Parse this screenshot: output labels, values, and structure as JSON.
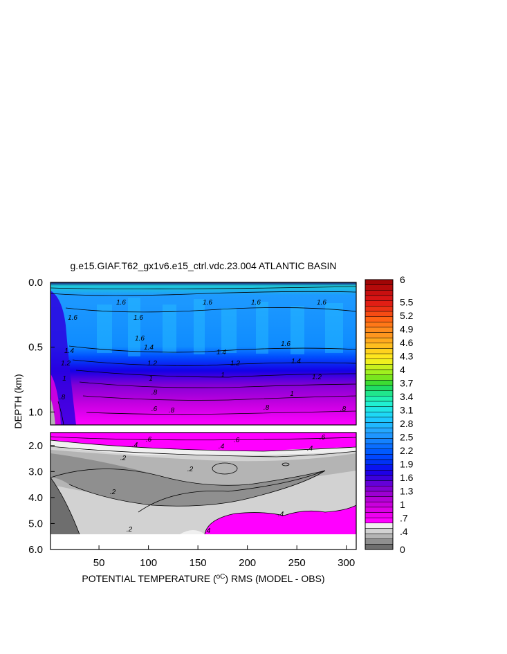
{
  "chart_data": {
    "type": "heatmap",
    "title": "g.e15.GIAF.T62_gx1v6.e15_ctrl.vdc.23.004 ATLANTIC BASIN",
    "xlabel": "POTENTIAL TEMPERATURE (",
    "xlabel_unit": "oC",
    "xlabel_tail": ") RMS (MODEL - OBS)",
    "ylabel": "DEPTH (km)",
    "xlim": [
      1,
      310
    ],
    "xticks": [
      50,
      100,
      150,
      200,
      250,
      300
    ],
    "upper_panel": {
      "ylim": [
        0.0,
        1.1
      ],
      "yticks": [
        "0.0",
        "0.5",
        "1.0"
      ]
    },
    "lower_panel": {
      "ylim": [
        1.5,
        6.0
      ],
      "yticks": [
        "2.0",
        "3.0",
        "4.0",
        "5.0",
        "6.0"
      ]
    },
    "colorbar_labels": [
      "6",
      "5.5",
      "5.2",
      "4.9",
      "4.6",
      "4.3",
      "4",
      "3.7",
      "3.4",
      "3.1",
      "2.8",
      "2.5",
      "2.2",
      "1.9",
      "1.6",
      "1.3",
      "1",
      ".7",
      ".4",
      "0"
    ],
    "colorbar_colors": [
      "#6e6e6e",
      "#8f8f8f",
      "#b4b4b4",
      "#d2d2d2",
      "#f0f0f0",
      "#ff00ff",
      "#ee00f0",
      "#dd00e6",
      "#c900dc",
      "#b400d6",
      "#9c00d2",
      "#8200d2",
      "#6400d8",
      "#3c00dc",
      "#1e00e6",
      "#0a14f0",
      "#0032f5",
      "#0046ff",
      "#005aff",
      "#0a6eff",
      "#1482ff",
      "#1e96ff",
      "#24a8ff",
      "#20b8ff",
      "#1ec8ff",
      "#1ed8f5",
      "#20e6e6",
      "#20f0d2",
      "#20f0b4",
      "#20e68c",
      "#20dc64",
      "#3cdc32",
      "#78e61e",
      "#a0f01e",
      "#c8f01e",
      "#f0f01e",
      "#ffe61e",
      "#ffd21e",
      "#ffbe1e",
      "#ffaa1e",
      "#ff961e",
      "#ff8c1e",
      "#ff7818",
      "#ff6414",
      "#f54b14",
      "#eb3214",
      "#e11e14",
      "#d71414",
      "#c80f0f",
      "#b40a0a",
      "#a00505"
    ],
    "contour_labels_upper": [
      "1.6",
      "1.6",
      "1.4",
      "1.2",
      "1",
      ".8",
      ".6",
      "1.6",
      "1.6",
      "1.4",
      "1.2",
      "1",
      ".8",
      ".8",
      "1.2",
      "1.4",
      "1.6",
      "1.6",
      "1",
      ".8",
      "1.6",
      "1.4",
      "1.2",
      "1",
      ".8",
      "1.6"
    ],
    "contour_labels_lower": [
      ".6",
      ".4",
      ".6",
      ".4",
      ".6",
      ".4",
      ".2",
      ".2",
      ".2",
      ".2",
      ".4",
      ".4"
    ]
  }
}
